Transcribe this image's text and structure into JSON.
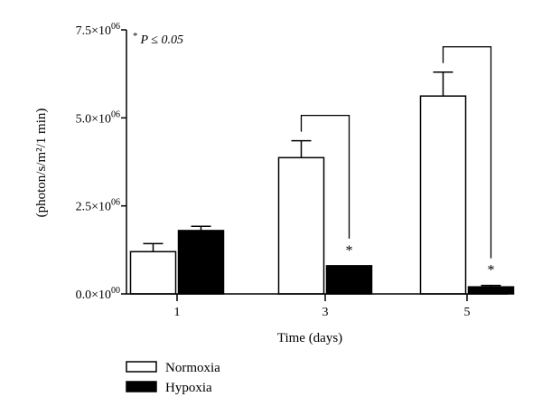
{
  "chart_data": {
    "type": "bar",
    "title": "",
    "xlabel": "Time (days)",
    "ylabel": "(photon/s/m²/1 min)",
    "categories": [
      "1",
      "3",
      "5"
    ],
    "series": [
      {
        "name": "Normoxia",
        "values": [
          1200000,
          3870000,
          5620000
        ],
        "errors": [
          230000,
          480000,
          680000
        ],
        "fill": "#ffffff",
        "stroke": "#000000"
      },
      {
        "name": "Hypoxia",
        "values": [
          1800000,
          800000,
          200000
        ],
        "errors": [
          120000,
          0,
          40000
        ],
        "fill": "#000000",
        "stroke": "#000000"
      }
    ],
    "ylim": [
      0,
      7500000
    ],
    "y_ticks": [
      {
        "value": 0,
        "mantissa": "0.0",
        "exponent": "00"
      },
      {
        "value": 2500000,
        "mantissa": "2.5",
        "exponent": "06"
      },
      {
        "value": 5000000,
        "mantissa": "5.0",
        "exponent": "06"
      },
      {
        "value": 7500000,
        "mantissa": "7.5",
        "exponent": "06"
      }
    ],
    "significance_note": {
      "star": "*",
      "text": "P ≤ 0.05"
    },
    "significance_marks": [
      {
        "category": "3",
        "series": "Hypoxia",
        "label": "*"
      },
      {
        "category": "5",
        "series": "Hypoxia",
        "label": "*"
      }
    ],
    "grid": false,
    "legend_position": "bottom-left"
  }
}
